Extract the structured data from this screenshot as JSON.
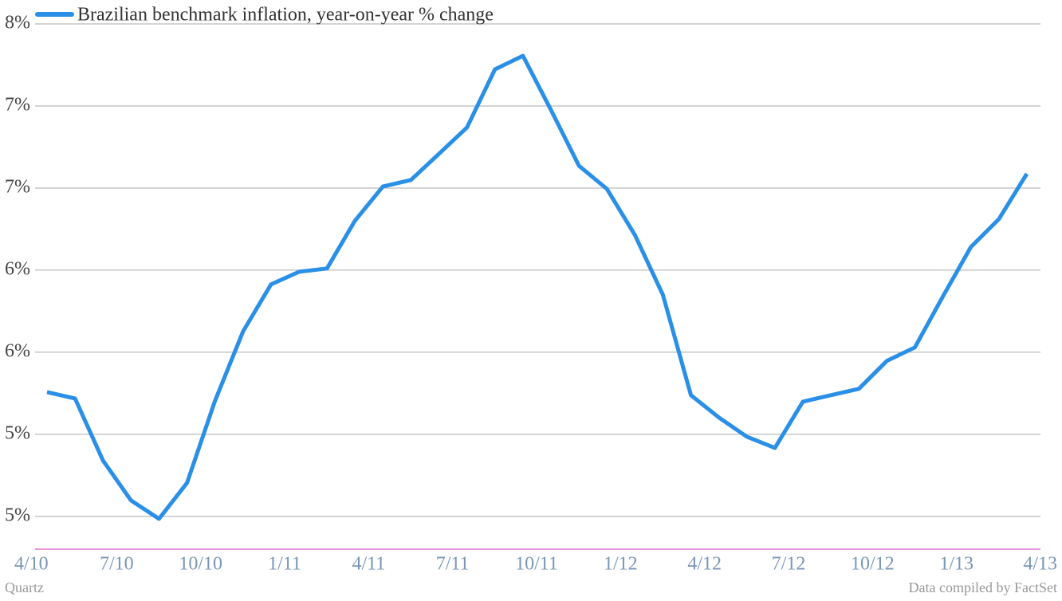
{
  "chart_data": {
    "type": "line",
    "categories": [
      "4/10",
      null,
      null,
      "7/10",
      null,
      null,
      "10/10",
      null,
      null,
      "1/11",
      null,
      null,
      "4/11",
      null,
      null,
      "7/11",
      null,
      null,
      "10/11",
      null,
      null,
      "1/12",
      null,
      null,
      "4/12",
      null,
      null,
      "7/12",
      null,
      null,
      "10/12",
      null,
      null,
      "1/13",
      null,
      null,
      "4/13"
    ],
    "series": [
      {
        "name": "Brazilian benchmark inflation, year-on-year % change",
        "color": "#2a8fe6",
        "values": [
          5.757,
          5.718,
          5.34,
          5.097,
          4.985,
          5.204,
          5.704,
          6.126,
          6.413,
          6.49,
          6.51,
          6.801,
          7.01,
          7.049,
          7.209,
          7.369,
          7.723,
          7.806,
          7.476,
          7.136,
          6.995,
          6.714,
          6.35,
          5.738,
          5.602,
          5.485,
          5.417,
          5.699,
          5.738,
          5.777,
          5.947,
          6.029,
          6.34,
          6.641,
          6.811,
          7.087,
          null
        ]
      }
    ],
    "ylim": [
      4.8,
      8.0
    ],
    "yticks": [
      {
        "value": 5.0,
        "label": "5%"
      },
      {
        "value": 5.5,
        "label": "5%"
      },
      {
        "value": 6.0,
        "label": "6%"
      },
      {
        "value": 6.5,
        "label": "6%"
      },
      {
        "value": 7.0,
        "label": "7%"
      },
      {
        "value": 7.5,
        "label": "7%"
      },
      {
        "value": 8.0,
        "label": "8%"
      }
    ],
    "grid": true,
    "source_left": "Quartz",
    "source_right": "Data compiled by FactSet"
  }
}
